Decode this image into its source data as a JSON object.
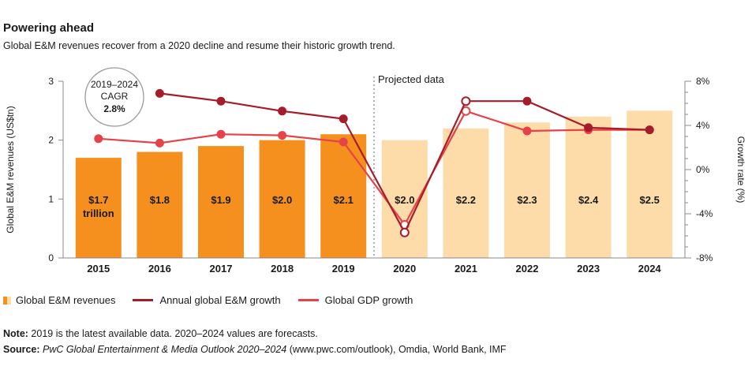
{
  "header": {
    "title": "Powering ahead",
    "subtitle": "Global E&M revenues recover from a 2020 decline and resume their historic growth trend."
  },
  "chart_data": {
    "type": "bar+line",
    "categories": [
      "2015",
      "2016",
      "2017",
      "2018",
      "2019",
      "2020",
      "2021",
      "2022",
      "2023",
      "2024"
    ],
    "ylabel": "Global E&M revenues (US$tn)",
    "ylabel_right": "Growth rate (%)",
    "ylim": [
      0,
      3
    ],
    "y_ticks": [
      "0",
      "1",
      "2",
      "3"
    ],
    "ylim_right": [
      -8,
      8
    ],
    "y_ticks_right": [
      "-8%",
      "-4%",
      "0%",
      "4%",
      "8%"
    ],
    "bars": {
      "name": "Global E&M revenues",
      "values": [
        1.7,
        1.8,
        1.9,
        2.0,
        2.1,
        2.0,
        2.2,
        2.3,
        2.4,
        2.5
      ],
      "labels": [
        "$1.7",
        "$1.8",
        "$1.9",
        "$2.0",
        "$2.1",
        "$2.0",
        "$2.2",
        "$2.3",
        "$2.4",
        "$2.5"
      ],
      "first_label_line2": "trillion",
      "actual_color": "#f5901e",
      "projected_color": "#fddcaa",
      "projected_from_index": 5
    },
    "series": [
      {
        "name": "Annual global E&M growth",
        "color": "#a51d2a",
        "values": [
          null,
          6.9,
          6.2,
          5.3,
          4.6,
          -5.7,
          6.2,
          6.2,
          3.8,
          3.6
        ]
      },
      {
        "name": "Global GDP growth",
        "color": "#e6424a",
        "values": [
          2.8,
          2.4,
          3.2,
          3.1,
          2.5,
          -5.0,
          5.3,
          3.5,
          3.6,
          3.6
        ]
      }
    ],
    "annotations": {
      "projected_label": "Projected data",
      "cagr_line1": "2019–2024",
      "cagr_line2": "CAGR",
      "cagr_value": "2.8%"
    },
    "grid": false,
    "legend_position": "bottom-left"
  },
  "legend": {
    "revenues": "Global E&M revenues",
    "annual_growth": "Annual global E&M growth",
    "gdp_growth": "Global GDP growth"
  },
  "footer": {
    "note_label": "Note:",
    "note_text": " 2019 is the latest available data. 2020–2024 values are forecasts.",
    "source_label": "Source:",
    "source_italic": " PwC Global Entertainment & Media Outlook 2020–2024",
    "source_text": " (www.pwc.com/outlook), Omdia, World Bank, IMF"
  }
}
